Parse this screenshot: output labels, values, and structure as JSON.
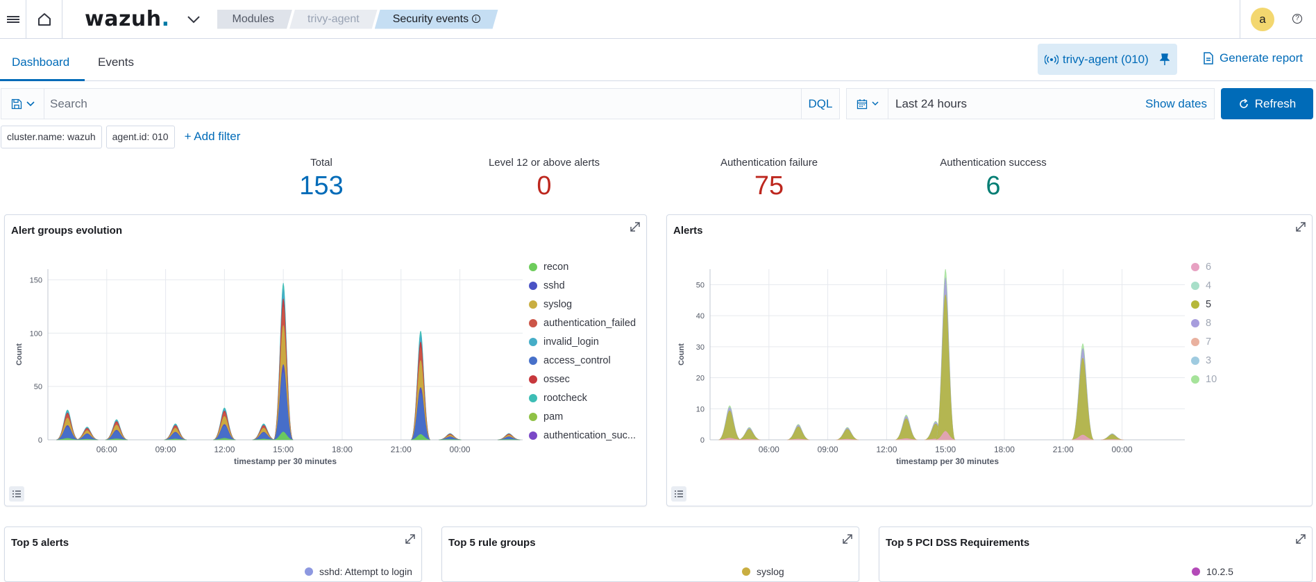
{
  "header": {
    "logo": "wazuh",
    "logo_dot": ".",
    "breadcrumbs": [
      "Modules",
      "trivy-agent",
      "Security events"
    ],
    "avatar_initial": "a",
    "help": "?"
  },
  "tabs": [
    "Dashboard",
    "Events"
  ],
  "agent_pill": "trivy-agent (010)",
  "generate_report": "Generate report",
  "search": {
    "placeholder": "Search",
    "dql": "DQL"
  },
  "date": {
    "range": "Last 24 hours",
    "show_dates": "Show dates",
    "refresh": "Refresh"
  },
  "filters": [
    "cluster.name: wazuh",
    "agent.id: 010"
  ],
  "add_filter": "+ Add filter",
  "stats": [
    {
      "label": "Total",
      "value": "153",
      "color": "#006bb8"
    },
    {
      "label": "Level 12 or above alerts",
      "value": "0",
      "color": "#bd271e"
    },
    {
      "label": "Authentication failure",
      "value": "75",
      "color": "#bd271e"
    },
    {
      "label": "Authentication success",
      "value": "6",
      "color": "#017d73"
    }
  ],
  "panels": {
    "alert_groups": "Alert groups evolution",
    "alerts": "Alerts",
    "top5_alerts": "Top 5 alerts",
    "top5_rule_groups": "Top 5 rule groups",
    "top5_pci": "Top 5 PCI DSS Requirements"
  },
  "chart_data": [
    {
      "type": "area",
      "title": "Alert groups evolution",
      "xlabel": "timestamp per 30 minutes",
      "ylabel": "Count",
      "x_ticks": [
        "06:00",
        "09:00",
        "12:00",
        "15:00",
        "18:00",
        "21:00",
        "00:00"
      ],
      "y_ticks": [
        0,
        50,
        100,
        150
      ],
      "ylim": [
        0,
        160
      ],
      "legend_position": "right",
      "series": [
        {
          "name": "recon",
          "color": "#6dcc5b"
        },
        {
          "name": "sshd",
          "color": "#4a52c4"
        },
        {
          "name": "syslog",
          "color": "#c9ae41"
        },
        {
          "name": "authentication_failed",
          "color": "#cc5547"
        },
        {
          "name": "invalid_login",
          "color": "#45adc7"
        },
        {
          "name": "access_control",
          "color": "#4770c9"
        },
        {
          "name": "ossec",
          "color": "#c7383d"
        },
        {
          "name": "rootcheck",
          "color": "#3dbdb5"
        },
        {
          "name": "pam",
          "color": "#8fc145"
        },
        {
          "name": "authentication_suc...",
          "color": "#7a48c7"
        }
      ],
      "totals": [
        {
          "x": "04:00",
          "y": 28
        },
        {
          "x": "05:00",
          "y": 12
        },
        {
          "x": "06:30",
          "y": 19
        },
        {
          "x": "09:30",
          "y": 15
        },
        {
          "x": "12:00",
          "y": 30
        },
        {
          "x": "14:00",
          "y": 15
        },
        {
          "x": "15:00",
          "y": 147
        },
        {
          "x": "22:00",
          "y": 102
        },
        {
          "x": "23:30",
          "y": 6
        },
        {
          "x": "02:30",
          "y": 6
        }
      ]
    },
    {
      "type": "area",
      "title": "Alerts",
      "xlabel": "timestamp per 30 minutes",
      "ylabel": "Count",
      "x_ticks": [
        "06:00",
        "09:00",
        "12:00",
        "15:00",
        "18:00",
        "21:00",
        "00:00"
      ],
      "y_ticks": [
        0,
        10,
        20,
        30,
        40,
        50
      ],
      "ylim": [
        0,
        55
      ],
      "legend_position": "right",
      "series": [
        {
          "name": "6",
          "color": "#e7a1c2"
        },
        {
          "name": "4",
          "color": "#a8dfc9"
        },
        {
          "name": "5",
          "color": "#b6b83a"
        },
        {
          "name": "8",
          "color": "#a79ddd"
        },
        {
          "name": "7",
          "color": "#e9b19f"
        },
        {
          "name": "3",
          "color": "#9fcbe0"
        },
        {
          "name": "10",
          "color": "#a6e39a"
        }
      ],
      "peaks": [
        {
          "x": "04:00",
          "y": 11
        },
        {
          "x": "05:00",
          "y": 4
        },
        {
          "x": "07:30",
          "y": 5
        },
        {
          "x": "10:00",
          "y": 4
        },
        {
          "x": "13:00",
          "y": 8
        },
        {
          "x": "14:30",
          "y": 6
        },
        {
          "x": "15:00",
          "y": 55
        },
        {
          "x": "22:00",
          "y": 31
        },
        {
          "x": "23:30",
          "y": 2
        }
      ]
    }
  ],
  "legend_labels": {
    "bottom_top5_alerts": "sshd: Attempt to login",
    "bottom_top5_rule_groups": "syslog",
    "bottom_top5_pci": "10.2.5"
  }
}
